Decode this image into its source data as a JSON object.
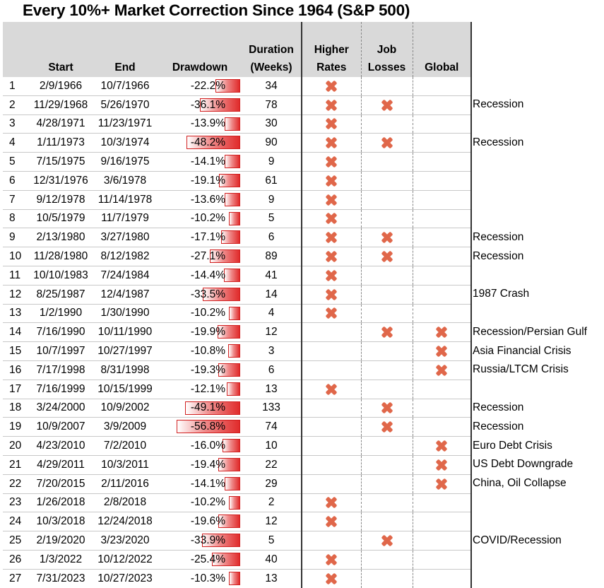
{
  "title": "Every 10%+ Market Correction Since 1964 (S&P 500)",
  "headers": {
    "start": "Start",
    "end": "End",
    "drawdown": "Drawdown",
    "duration_1": "Duration",
    "duration_2": "(Weeks)",
    "higher_rates_1": "Higher",
    "higher_rates_2": "Rates",
    "job_losses_1": "Job",
    "job_losses_2": "Losses",
    "global": "Global"
  },
  "icons": {
    "mark": "x-mark-icon",
    "mark_color": "#e0674a",
    "bar_color": "#e02b2b"
  },
  "rows": [
    {
      "n": "1",
      "start": "2/9/1966",
      "end": "10/7/1966",
      "drawdown": "-22.2%",
      "dd": 22.2,
      "weeks": "34",
      "rates": true,
      "jobs": false,
      "global": false,
      "note": ""
    },
    {
      "n": "2",
      "start": "11/29/1968",
      "end": "5/26/1970",
      "drawdown": "-36.1%",
      "dd": 36.1,
      "weeks": "78",
      "rates": true,
      "jobs": true,
      "global": false,
      "note": "Recession"
    },
    {
      "n": "3",
      "start": "4/28/1971",
      "end": "11/23/1971",
      "drawdown": "-13.9%",
      "dd": 13.9,
      "weeks": "30",
      "rates": true,
      "jobs": false,
      "global": false,
      "note": ""
    },
    {
      "n": "4",
      "start": "1/11/1973",
      "end": "10/3/1974",
      "drawdown": "-48.2%",
      "dd": 48.2,
      "weeks": "90",
      "rates": true,
      "jobs": true,
      "global": false,
      "note": "Recession"
    },
    {
      "n": "5",
      "start": "7/15/1975",
      "end": "9/16/1975",
      "drawdown": "-14.1%",
      "dd": 14.1,
      "weeks": "9",
      "rates": true,
      "jobs": false,
      "global": false,
      "note": ""
    },
    {
      "n": "6",
      "start": "12/31/1976",
      "end": "3/6/1978",
      "drawdown": "-19.1%",
      "dd": 19.1,
      "weeks": "61",
      "rates": true,
      "jobs": false,
      "global": false,
      "note": ""
    },
    {
      "n": "7",
      "start": "9/12/1978",
      "end": "11/14/1978",
      "drawdown": "-13.6%",
      "dd": 13.6,
      "weeks": "9",
      "rates": true,
      "jobs": false,
      "global": false,
      "note": ""
    },
    {
      "n": "8",
      "start": "10/5/1979",
      "end": "11/7/1979",
      "drawdown": "-10.2%",
      "dd": 10.2,
      "weeks": "5",
      "rates": true,
      "jobs": false,
      "global": false,
      "note": ""
    },
    {
      "n": "9",
      "start": "2/13/1980",
      "end": "3/27/1980",
      "drawdown": "-17.1%",
      "dd": 17.1,
      "weeks": "6",
      "rates": true,
      "jobs": true,
      "global": false,
      "note": "Recession"
    },
    {
      "n": "10",
      "start": "11/28/1980",
      "end": "8/12/1982",
      "drawdown": "-27.1%",
      "dd": 27.1,
      "weeks": "89",
      "rates": true,
      "jobs": true,
      "global": false,
      "note": "Recession"
    },
    {
      "n": "11",
      "start": "10/10/1983",
      "end": "7/24/1984",
      "drawdown": "-14.4%",
      "dd": 14.4,
      "weeks": "41",
      "rates": true,
      "jobs": false,
      "global": false,
      "note": ""
    },
    {
      "n": "12",
      "start": "8/25/1987",
      "end": "12/4/1987",
      "drawdown": "-33.5%",
      "dd": 33.5,
      "weeks": "14",
      "rates": true,
      "jobs": false,
      "global": false,
      "note": "1987 Crash"
    },
    {
      "n": "13",
      "start": "1/2/1990",
      "end": "1/30/1990",
      "drawdown": "-10.2%",
      "dd": 10.2,
      "weeks": "4",
      "rates": true,
      "jobs": false,
      "global": false,
      "note": ""
    },
    {
      "n": "14",
      "start": "7/16/1990",
      "end": "10/11/1990",
      "drawdown": "-19.9%",
      "dd": 19.9,
      "weeks": "12",
      "rates": false,
      "jobs": true,
      "global": true,
      "note": "Recession/Persian Gulf"
    },
    {
      "n": "15",
      "start": "10/7/1997",
      "end": "10/27/1997",
      "drawdown": "-10.8%",
      "dd": 10.8,
      "weeks": "3",
      "rates": false,
      "jobs": false,
      "global": true,
      "note": "Asia Financial Crisis"
    },
    {
      "n": "16",
      "start": "7/17/1998",
      "end": "8/31/1998",
      "drawdown": "-19.3%",
      "dd": 19.3,
      "weeks": "6",
      "rates": false,
      "jobs": false,
      "global": true,
      "note": "Russia/LTCM Crisis"
    },
    {
      "n": "17",
      "start": "7/16/1999",
      "end": "10/15/1999",
      "drawdown": "-12.1%",
      "dd": 12.1,
      "weeks": "13",
      "rates": true,
      "jobs": false,
      "global": false,
      "note": ""
    },
    {
      "n": "18",
      "start": "3/24/2000",
      "end": "10/9/2002",
      "drawdown": "-49.1%",
      "dd": 49.1,
      "weeks": "133",
      "rates": false,
      "jobs": true,
      "global": false,
      "note": "Recession"
    },
    {
      "n": "19",
      "start": "10/9/2007",
      "end": "3/9/2009",
      "drawdown": "-56.8%",
      "dd": 56.8,
      "weeks": "74",
      "rates": false,
      "jobs": true,
      "global": false,
      "note": "Recession"
    },
    {
      "n": "20",
      "start": "4/23/2010",
      "end": "7/2/2010",
      "drawdown": "-16.0%",
      "dd": 16.0,
      "weeks": "10",
      "rates": false,
      "jobs": false,
      "global": true,
      "note": "Euro Debt Crisis"
    },
    {
      "n": "21",
      "start": "4/29/2011",
      "end": "10/3/2011",
      "drawdown": "-19.4%",
      "dd": 19.4,
      "weeks": "22",
      "rates": false,
      "jobs": false,
      "global": true,
      "note": "US Debt Downgrade"
    },
    {
      "n": "22",
      "start": "7/20/2015",
      "end": "2/11/2016",
      "drawdown": "-14.1%",
      "dd": 14.1,
      "weeks": "29",
      "rates": false,
      "jobs": false,
      "global": true,
      "note": "China, Oil Collapse"
    },
    {
      "n": "23",
      "start": "1/26/2018",
      "end": "2/8/2018",
      "drawdown": "-10.2%",
      "dd": 10.2,
      "weeks": "2",
      "rates": true,
      "jobs": false,
      "global": false,
      "note": ""
    },
    {
      "n": "24",
      "start": "10/3/2018",
      "end": "12/24/2018",
      "drawdown": "-19.6%",
      "dd": 19.6,
      "weeks": "12",
      "rates": true,
      "jobs": false,
      "global": false,
      "note": ""
    },
    {
      "n": "25",
      "start": "2/19/2020",
      "end": "3/23/2020",
      "drawdown": "-33.9%",
      "dd": 33.9,
      "weeks": "5",
      "rates": false,
      "jobs": true,
      "global": false,
      "note": "COVID/Recession"
    },
    {
      "n": "26",
      "start": "1/3/2022",
      "end": "10/12/2022",
      "drawdown": "-25.4%",
      "dd": 25.4,
      "weeks": "40",
      "rates": true,
      "jobs": false,
      "global": false,
      "note": ""
    },
    {
      "n": "27",
      "start": "7/31/2023",
      "end": "10/27/2023",
      "drawdown": "-10.3%",
      "dd": 10.3,
      "weeks": "13",
      "rates": true,
      "jobs": false,
      "global": false,
      "note": ""
    }
  ]
}
